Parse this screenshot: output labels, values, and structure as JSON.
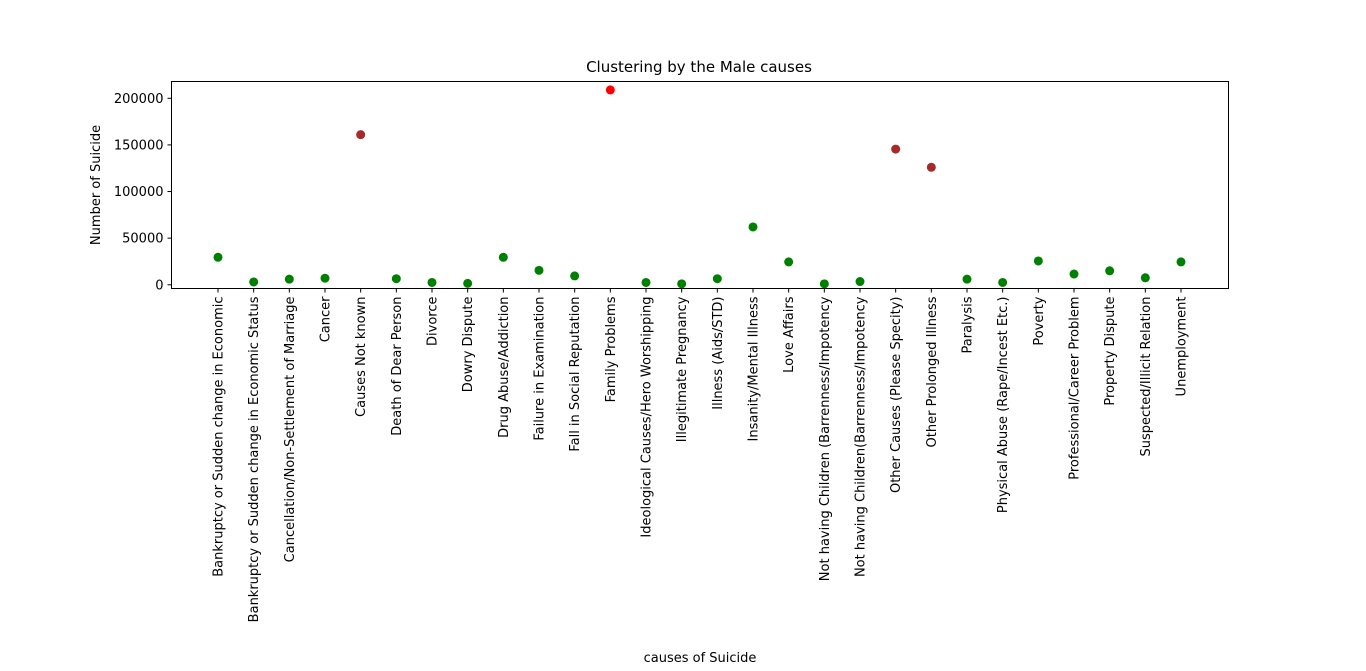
{
  "chart_data": {
    "type": "scatter",
    "title": "Clustering by the Male causes",
    "xlabel": "causes of Suicide",
    "ylabel": "Number of Suicide",
    "ylim": [
      -4000,
      218000
    ],
    "yticks": [
      0,
      50000,
      100000,
      150000,
      200000
    ],
    "ytick_labels": [
      "0",
      "50000",
      "100000",
      "150000",
      "200000"
    ],
    "grid": false,
    "legend": "none",
    "cluster_colors": [
      "#008000",
      "#a52a2a",
      "#ff0000"
    ],
    "categories": [
      "Bankruptcy or Sudden change in Economic",
      "Bankruptcy or Sudden change in Economic Status",
      "Cancellation/Non-Settlement of Marriage",
      "Cancer",
      "Causes Not known",
      "Death of Dear Person",
      "Divorce",
      "Dowry Dispute",
      "Drug Abuse/Addiction",
      "Failure in Examination",
      "Fall in Social Reputation",
      "Family Problems",
      "Ideological Causes/Hero Worshipping",
      "Illegitimate Pregnancy",
      "Illness (Aids/STD)",
      "Insanity/Mental Illness",
      "Love Affairs",
      "Not having Children (Barrenness/Impotency",
      "Not having Children(Barrenness/Impotency",
      "Other Causes (Please Specity)",
      "Other Prolonged Illness",
      "Paralysis",
      "Physical Abuse (Rape/Incest Etc.)",
      "Poverty",
      "Professional/Career Problem",
      "Property Dispute",
      "Suspected/Illicit Relation",
      "Unemployment"
    ],
    "values": [
      29500,
      3000,
      6000,
      7000,
      161000,
      6500,
      2500,
      1500,
      29500,
      15500,
      9500,
      209000,
      2500,
      1000,
      6500,
      62000,
      24500,
      1000,
      3500,
      145500,
      126000,
      6000,
      2500,
      25500,
      11500,
      15000,
      7500,
      24500
    ],
    "clusters": [
      0,
      0,
      0,
      0,
      1,
      0,
      0,
      0,
      0,
      0,
      0,
      2,
      0,
      0,
      0,
      0,
      0,
      0,
      0,
      1,
      1,
      0,
      0,
      0,
      0,
      0,
      0,
      0
    ]
  }
}
